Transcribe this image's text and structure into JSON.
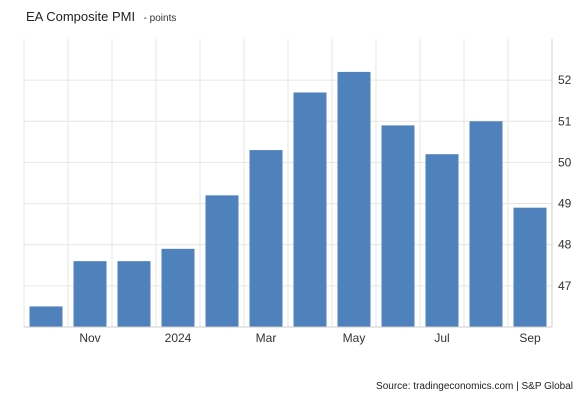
{
  "header": {
    "title": "EA Composite PMI",
    "unit": "- points"
  },
  "source": "Source: tradingeconomics.com | S&P Global",
  "colors": {
    "bar": "#4f81bd",
    "grid": "#e6e6e6",
    "axis": "#cccccc"
  },
  "chart_data": {
    "type": "bar",
    "title": "EA Composite PMI",
    "xlabel": "",
    "ylabel": "",
    "unit": "points",
    "categories": [
      "2023-10",
      "2023-11",
      "2023-12",
      "2024-01",
      "2024-02",
      "2024-03",
      "2024-04",
      "2024-05",
      "2024-06",
      "2024-07",
      "2024-08",
      "2024-09"
    ],
    "values": [
      46.5,
      47.6,
      47.6,
      47.9,
      49.2,
      50.3,
      51.7,
      52.2,
      50.9,
      50.2,
      51.0,
      48.9
    ],
    "x_tick_labels": [
      {
        "category": "2023-11",
        "label": "Nov"
      },
      {
        "category": "2024-01",
        "label": "2024"
      },
      {
        "category": "2024-03",
        "label": "Mar"
      },
      {
        "category": "2024-05",
        "label": "May"
      },
      {
        "category": "2024-07",
        "label": "Jul"
      },
      {
        "category": "2024-09",
        "label": "Sep"
      }
    ],
    "y_ticks": [
      47,
      48,
      49,
      50,
      51,
      52
    ],
    "ylim": [
      46.0,
      53.0
    ],
    "y_axis_side": "right",
    "grid": true,
    "legend": "none"
  }
}
